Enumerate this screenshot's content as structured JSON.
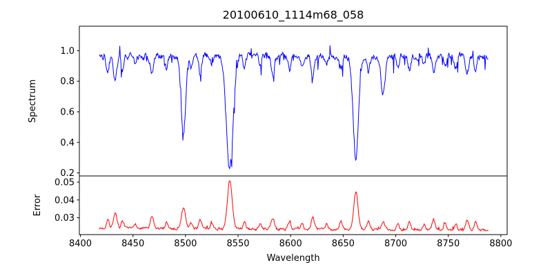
{
  "title": "20100610_1114m68_058",
  "xlabel": "Wavelength",
  "xticks": [
    "8400",
    "8450",
    "8500",
    "8550",
    "8600",
    "8650",
    "8700",
    "8750",
    "8800"
  ],
  "chart_data": [
    {
      "type": "line",
      "name": "spectrum",
      "ylabel": "Spectrum",
      "color": "#0000ff",
      "xlim": [
        8399,
        8806
      ],
      "ylim": [
        0.18,
        1.16
      ],
      "yticks": [
        "0.2",
        "0.4",
        "0.6",
        "0.8",
        "1.0"
      ],
      "x_start": 8418,
      "x_end": 8788,
      "x_step": 0.5,
      "seed": 42,
      "continuum": 0.965,
      "noise_amplitude": 0.018,
      "dip_probability": 0.06,
      "dip_max": 0.1,
      "spike_probability": 0.03,
      "spike_max": 0.08,
      "absorption_lines": [
        [
          8498.0,
          0.5,
          2.2
        ],
        [
          8542.1,
          0.74,
          3.2
        ],
        [
          8662.1,
          0.67,
          2.6
        ],
        [
          8688.0,
          0.25,
          2.0
        ]
      ],
      "minor_lines": [
        [
          8426,
          0.1,
          1.3
        ],
        [
          8433,
          0.17,
          1.6
        ],
        [
          8440,
          0.08,
          1.2
        ],
        [
          8452,
          0.06,
          1.2
        ],
        [
          8468,
          0.13,
          1.5
        ],
        [
          8482,
          0.08,
          1.2
        ],
        [
          8505,
          0.07,
          1.2
        ],
        [
          8514,
          0.11,
          1.4
        ],
        [
          8525,
          0.07,
          1.2
        ],
        [
          8556,
          0.08,
          1.2
        ],
        [
          8571,
          0.06,
          1.2
        ],
        [
          8583,
          0.13,
          1.5
        ],
        [
          8599,
          0.09,
          1.3
        ],
        [
          8611,
          0.07,
          1.2
        ],
        [
          8621,
          0.14,
          1.5
        ],
        [
          8634,
          0.06,
          1.2
        ],
        [
          8648,
          0.09,
          1.3
        ],
        [
          8674,
          0.11,
          1.4
        ],
        [
          8702,
          0.07,
          1.2
        ],
        [
          8713,
          0.09,
          1.3
        ],
        [
          8727,
          0.06,
          1.2
        ],
        [
          8736,
          0.11,
          1.4
        ],
        [
          8747,
          0.07,
          1.2
        ],
        [
          8757,
          0.08,
          1.2
        ],
        [
          8768,
          0.12,
          1.4
        ],
        [
          8776,
          0.09,
          1.3
        ]
      ]
    },
    {
      "type": "line",
      "name": "error",
      "ylabel": "Error",
      "color": "#ff0000",
      "ylim": [
        0.0205,
        0.0535
      ],
      "yticks": [
        "0.03",
        "0.04",
        "0.05"
      ],
      "x_start": 8418,
      "x_end": 8788,
      "x_step": 0.5,
      "seed": 7,
      "baseline": 0.024,
      "slope": -2.5e-06,
      "noise_amplitude": 0.0006,
      "spike_probability": 0.05,
      "spike_max": 0.0015,
      "peaks": [
        [
          8498.0,
          0.0115,
          2.0
        ],
        [
          8542.1,
          0.0275,
          2.2
        ],
        [
          8662.1,
          0.0205,
          2.0
        ],
        [
          8688.0,
          0.004,
          1.6
        ]
      ],
      "minor_peak_scale": 0.05
    }
  ]
}
